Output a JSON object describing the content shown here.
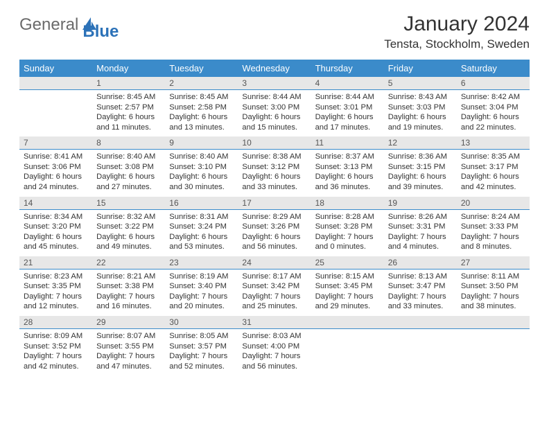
{
  "logo": {
    "text1": "General",
    "text2": "Blue"
  },
  "title": "January 2024",
  "location": "Tensta, Stockholm, Sweden",
  "colors": {
    "header_bg": "#3b8bca",
    "daynum_bg": "#e7e7e7",
    "rule": "#3b8bca"
  },
  "weekdays": [
    "Sunday",
    "Monday",
    "Tuesday",
    "Wednesday",
    "Thursday",
    "Friday",
    "Saturday"
  ],
  "weeks": [
    [
      null,
      {
        "n": "1",
        "sr": "8:45 AM",
        "ss": "2:57 PM",
        "dl": "6 hours and 11 minutes."
      },
      {
        "n": "2",
        "sr": "8:45 AM",
        "ss": "2:58 PM",
        "dl": "6 hours and 13 minutes."
      },
      {
        "n": "3",
        "sr": "8:44 AM",
        "ss": "3:00 PM",
        "dl": "6 hours and 15 minutes."
      },
      {
        "n": "4",
        "sr": "8:44 AM",
        "ss": "3:01 PM",
        "dl": "6 hours and 17 minutes."
      },
      {
        "n": "5",
        "sr": "8:43 AM",
        "ss": "3:03 PM",
        "dl": "6 hours and 19 minutes."
      },
      {
        "n": "6",
        "sr": "8:42 AM",
        "ss": "3:04 PM",
        "dl": "6 hours and 22 minutes."
      }
    ],
    [
      {
        "n": "7",
        "sr": "8:41 AM",
        "ss": "3:06 PM",
        "dl": "6 hours and 24 minutes."
      },
      {
        "n": "8",
        "sr": "8:40 AM",
        "ss": "3:08 PM",
        "dl": "6 hours and 27 minutes."
      },
      {
        "n": "9",
        "sr": "8:40 AM",
        "ss": "3:10 PM",
        "dl": "6 hours and 30 minutes."
      },
      {
        "n": "10",
        "sr": "8:38 AM",
        "ss": "3:12 PM",
        "dl": "6 hours and 33 minutes."
      },
      {
        "n": "11",
        "sr": "8:37 AM",
        "ss": "3:13 PM",
        "dl": "6 hours and 36 minutes."
      },
      {
        "n": "12",
        "sr": "8:36 AM",
        "ss": "3:15 PM",
        "dl": "6 hours and 39 minutes."
      },
      {
        "n": "13",
        "sr": "8:35 AM",
        "ss": "3:17 PM",
        "dl": "6 hours and 42 minutes."
      }
    ],
    [
      {
        "n": "14",
        "sr": "8:34 AM",
        "ss": "3:20 PM",
        "dl": "6 hours and 45 minutes."
      },
      {
        "n": "15",
        "sr": "8:32 AM",
        "ss": "3:22 PM",
        "dl": "6 hours and 49 minutes."
      },
      {
        "n": "16",
        "sr": "8:31 AM",
        "ss": "3:24 PM",
        "dl": "6 hours and 53 minutes."
      },
      {
        "n": "17",
        "sr": "8:29 AM",
        "ss": "3:26 PM",
        "dl": "6 hours and 56 minutes."
      },
      {
        "n": "18",
        "sr": "8:28 AM",
        "ss": "3:28 PM",
        "dl": "7 hours and 0 minutes."
      },
      {
        "n": "19",
        "sr": "8:26 AM",
        "ss": "3:31 PM",
        "dl": "7 hours and 4 minutes."
      },
      {
        "n": "20",
        "sr": "8:24 AM",
        "ss": "3:33 PM",
        "dl": "7 hours and 8 minutes."
      }
    ],
    [
      {
        "n": "21",
        "sr": "8:23 AM",
        "ss": "3:35 PM",
        "dl": "7 hours and 12 minutes."
      },
      {
        "n": "22",
        "sr": "8:21 AM",
        "ss": "3:38 PM",
        "dl": "7 hours and 16 minutes."
      },
      {
        "n": "23",
        "sr": "8:19 AM",
        "ss": "3:40 PM",
        "dl": "7 hours and 20 minutes."
      },
      {
        "n": "24",
        "sr": "8:17 AM",
        "ss": "3:42 PM",
        "dl": "7 hours and 25 minutes."
      },
      {
        "n": "25",
        "sr": "8:15 AM",
        "ss": "3:45 PM",
        "dl": "7 hours and 29 minutes."
      },
      {
        "n": "26",
        "sr": "8:13 AM",
        "ss": "3:47 PM",
        "dl": "7 hours and 33 minutes."
      },
      {
        "n": "27",
        "sr": "8:11 AM",
        "ss": "3:50 PM",
        "dl": "7 hours and 38 minutes."
      }
    ],
    [
      {
        "n": "28",
        "sr": "8:09 AM",
        "ss": "3:52 PM",
        "dl": "7 hours and 42 minutes."
      },
      {
        "n": "29",
        "sr": "8:07 AM",
        "ss": "3:55 PM",
        "dl": "7 hours and 47 minutes."
      },
      {
        "n": "30",
        "sr": "8:05 AM",
        "ss": "3:57 PM",
        "dl": "7 hours and 52 minutes."
      },
      {
        "n": "31",
        "sr": "8:03 AM",
        "ss": "4:00 PM",
        "dl": "7 hours and 56 minutes."
      },
      null,
      null,
      null
    ]
  ],
  "labels": {
    "sunrise": "Sunrise:",
    "sunset": "Sunset:",
    "daylight": "Daylight:"
  }
}
